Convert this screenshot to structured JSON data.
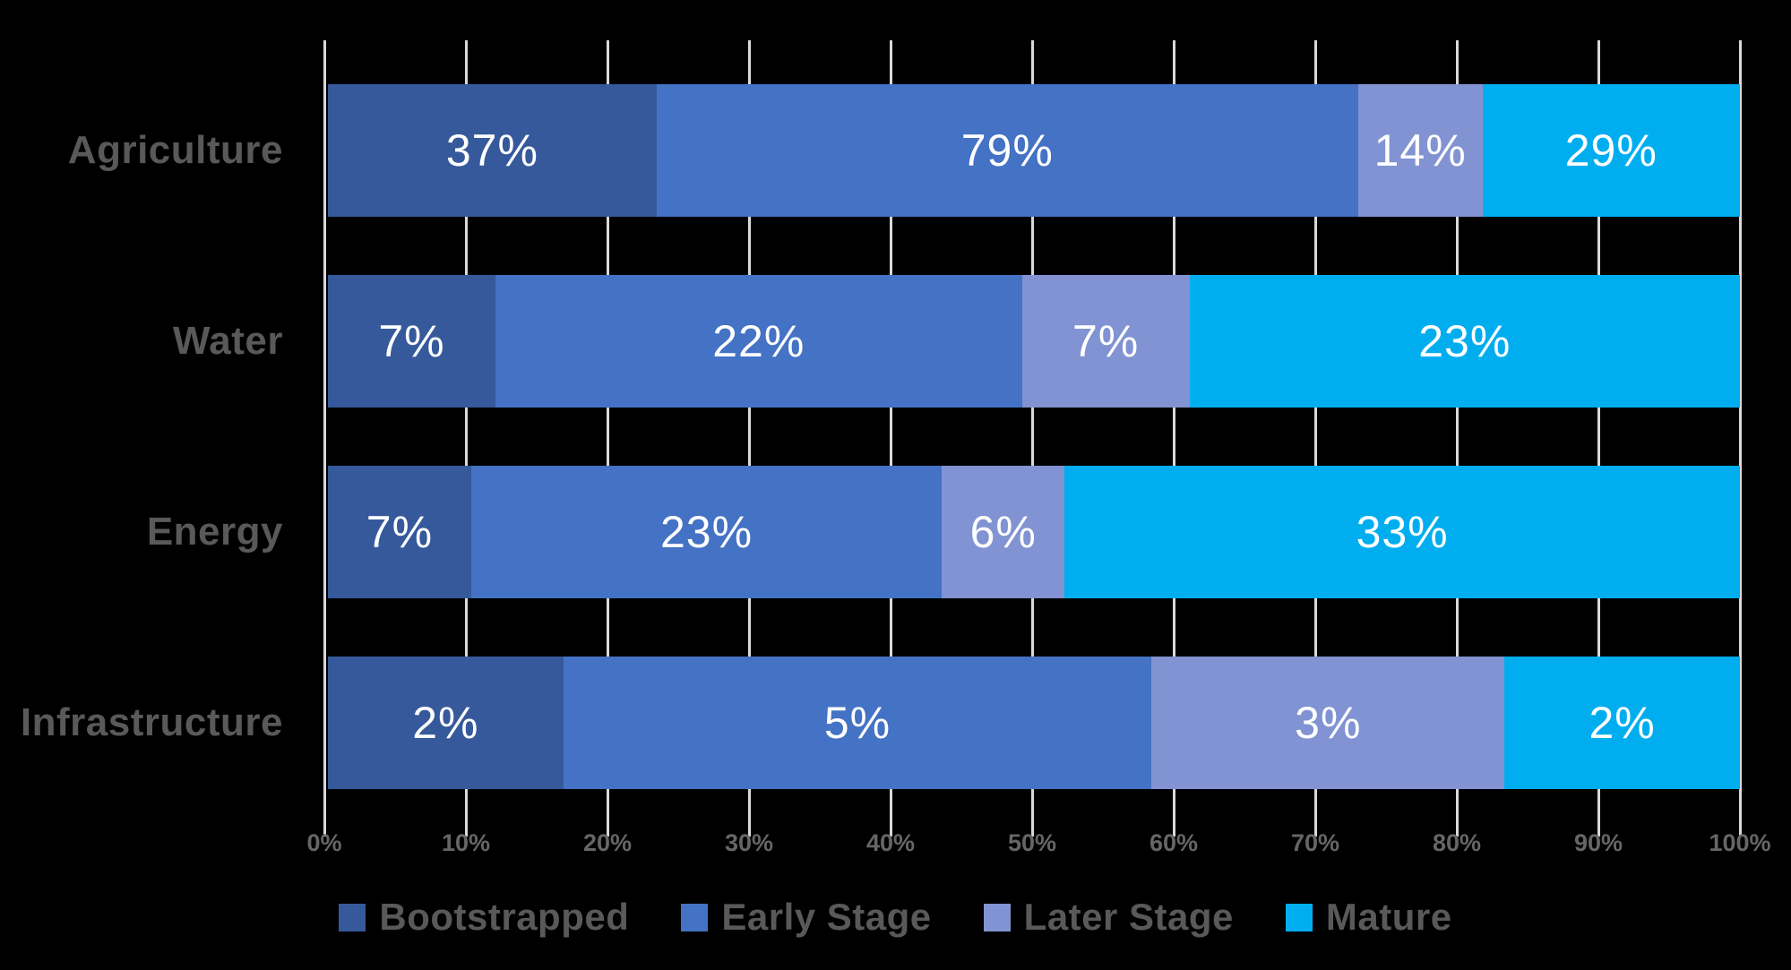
{
  "chart_data": {
    "type": "bar",
    "orientation": "horizontal",
    "stacking": "normalized-to-row-total",
    "title": "",
    "categories": [
      "Agriculture",
      "Water",
      "Energy",
      "Infrastructure"
    ],
    "series": [
      {
        "name": "Bootstrapped",
        "color": "#36599B",
        "values": [
          37,
          7,
          7,
          2
        ]
      },
      {
        "name": "Early Stage",
        "color": "#4472C4",
        "values": [
          79,
          22,
          23,
          5
        ]
      },
      {
        "name": "Later Stage",
        "color": "#8193D2",
        "values": [
          14,
          7,
          6,
          3
        ]
      },
      {
        "name": "Mature",
        "color": "#00AEEF",
        "values": [
          29,
          23,
          33,
          2
        ]
      }
    ],
    "value_suffix": "%",
    "data_label_color": "#FFFFFF",
    "x_axis": {
      "min": 0,
      "max": 100,
      "tick_labels": [
        "0%",
        "10%",
        "20%",
        "30%",
        "40%",
        "50%",
        "60%",
        "70%",
        "80%",
        "90%",
        "100%"
      ]
    },
    "grid": true,
    "gridline_color": "#D9D9D9",
    "background_color": "#000000",
    "category_label_color": "#595959",
    "tick_label_color": "#666666",
    "legend_position": "bottom",
    "legend_text_color": "#595959"
  }
}
